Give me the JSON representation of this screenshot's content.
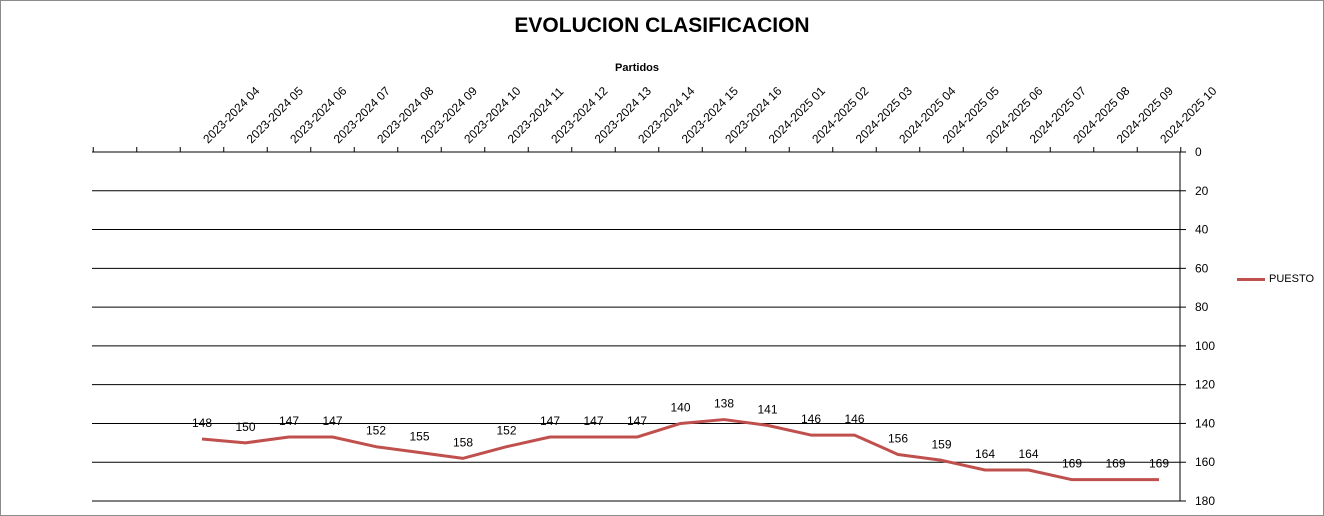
{
  "chart_data": {
    "type": "line",
    "title": "EVOLUCION CLASIFICACION",
    "xlabel": "Partidos",
    "ylabel": "",
    "y_inverted": true,
    "ylim": [
      0,
      180
    ],
    "yticks": [
      0,
      20,
      40,
      60,
      80,
      100,
      120,
      140,
      160,
      180
    ],
    "y_axis_side": "right",
    "x_axis_side": "top",
    "grid": true,
    "legend_position": "right",
    "categories": [
      "2023-2024 04",
      "2023-2024 05",
      "2023-2024 06",
      "2023-2024 07",
      "2023-2024 08",
      "2023-2024 09",
      "2023-2024 10",
      "2023-2024 11",
      "2023-2024 12",
      "2023-2024 13",
      "2023-2024 14",
      "2023-2024 15",
      "2023-2024 16",
      "2024-2025 01",
      "2024-2025 02",
      "2024-2025 03",
      "2024-2025 04",
      "2024-2025 05",
      "2024-2025 06",
      "2024-2025 07",
      "2024-2025 08",
      "2024-2025 09",
      "2024-2025 10"
    ],
    "series": [
      {
        "name": "PUESTO",
        "color": "#c0504d",
        "values": [
          148,
          150,
          147,
          147,
          152,
          155,
          158,
          152,
          147,
          147,
          147,
          140,
          138,
          141,
          146,
          146,
          156,
          159,
          164,
          164,
          169,
          169,
          169
        ]
      }
    ]
  }
}
